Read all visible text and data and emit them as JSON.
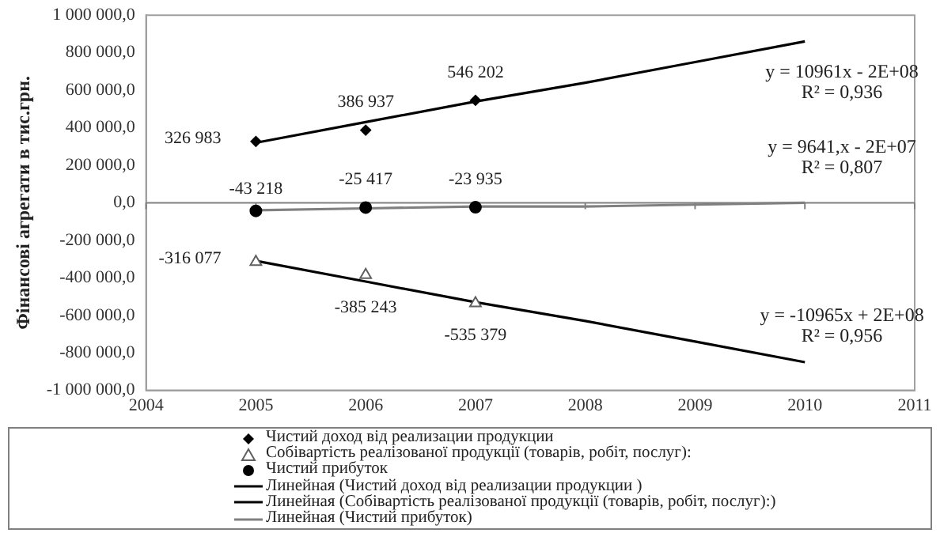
{
  "chart_data": {
    "type": "scatter",
    "ylabel": "Фінансові агрегати в тис.грн.",
    "x": [
      2005,
      2006,
      2007
    ],
    "xlim": [
      2004,
      2011
    ],
    "xticks": [
      2004,
      2005,
      2006,
      2007,
      2008,
      2009,
      2010,
      2011
    ],
    "ylim": [
      -1000000,
      1000000
    ],
    "yticks": [
      {
        "value": -1000000,
        "label": "-1 000 000,0"
      },
      {
        "value": -800000,
        "label": "-800 000,0"
      },
      {
        "value": -600000,
        "label": "-600 000,0"
      },
      {
        "value": -400000,
        "label": "-400 000,0"
      },
      {
        "value": -200000,
        "label": "-200 000,0"
      },
      {
        "value": 0,
        "label": "0,0"
      },
      {
        "value": 200000,
        "label": "200 000,0"
      },
      {
        "value": 400000,
        "label": "400 000,0"
      },
      {
        "value": 600000,
        "label": "600 000,0"
      },
      {
        "value": 800000,
        "label": "800 000,0"
      },
      {
        "value": 1000000,
        "label": "1 000 000,0"
      }
    ],
    "grid": false,
    "legend": "bottom",
    "ref_lines": [
      {
        "axis": "y",
        "value": 0,
        "color": "#808080"
      }
    ],
    "series": [
      {
        "name": "Чистий доход  від реализации продукции",
        "marker": "diamond",
        "color": "#000000",
        "values": [
          326983,
          386937,
          546202
        ],
        "value_labels": [
          "326 983",
          "386 937",
          "546 202"
        ]
      },
      {
        "name": "Собівартість реалізованої продукції (товарів, робіт, послуг):",
        "marker": "triangle",
        "color": "#606060",
        "values": [
          -316077,
          -385243,
          -535379
        ],
        "value_labels": [
          "-316 077",
          "-385 243",
          "-535 379"
        ]
      },
      {
        "name": "Чистий прибуток",
        "marker": "circle",
        "color": "#000000",
        "values": [
          -43218,
          -25417,
          -23935
        ],
        "value_labels": [
          "-43 218",
          "-25 417",
          "-23 935"
        ]
      },
      {
        "name": "Линейная (Чистий доход  від реализации продукции  )",
        "type": "line",
        "marker": "none",
        "color": "#000000",
        "x": [
          2005,
          2006,
          2007,
          2008,
          2009,
          2010
        ],
        "values": [
          320000,
          430000,
          540000,
          640000,
          750000,
          860000
        ]
      },
      {
        "name": "Линейная (Собівартість реалізованої продукції (товарів, робіт, послуг):)",
        "type": "line",
        "marker": "none",
        "color": "#000000",
        "x": [
          2005,
          2006,
          2007,
          2008,
          2009,
          2010
        ],
        "values": [
          -310000,
          -420000,
          -530000,
          -630000,
          -740000,
          -850000
        ]
      },
      {
        "name": "Линейная (Чистий прибуток)",
        "type": "line",
        "marker": "none",
        "color": "#808080",
        "x": [
          2005,
          2006,
          2007,
          2008,
          2009,
          2010
        ],
        "values": [
          -40000,
          -30000,
          -20000,
          -20000,
          -10000,
          0
        ]
      }
    ],
    "annotations": [
      "y = 10961x - 2E+08\nR² = 0,936",
      "y = 9641,x - 2E+07\nR² = 0,807",
      "y = -10965x + 2E+08\nR² = 0,956"
    ]
  }
}
